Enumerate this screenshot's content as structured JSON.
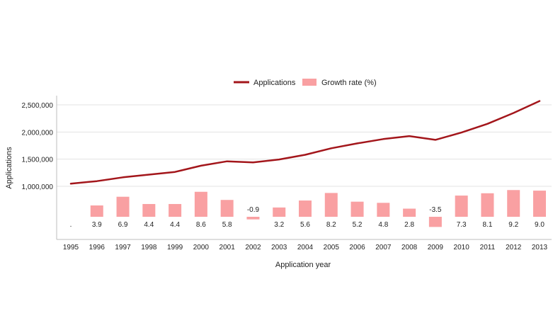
{
  "chart_data": {
    "type": "bar+line",
    "title": "",
    "xlabel": "Application year",
    "ylabel": "Applications",
    "categories": [
      "1995",
      "1996",
      "1997",
      "1998",
      "1999",
      "2000",
      "2001",
      "2002",
      "2003",
      "2004",
      "2005",
      "2006",
      "2007",
      "2008",
      "2009",
      "2010",
      "2011",
      "2012",
      "2013"
    ],
    "series": [
      {
        "name": "Applications",
        "type": "line",
        "color": "#A3161B",
        "values": [
          1050000,
          1095000,
          1165000,
          1215000,
          1265000,
          1380000,
          1460000,
          1440000,
          1495000,
          1580000,
          1700000,
          1790000,
          1870000,
          1925000,
          1855000,
          1990000,
          2150000,
          2350000,
          2570000
        ]
      },
      {
        "name": "Growth rate (%)",
        "type": "bar",
        "color": "#F9A0A2",
        "values": [
          null,
          3.9,
          6.9,
          4.4,
          4.4,
          8.6,
          5.8,
          -0.9,
          3.2,
          5.6,
          8.2,
          5.2,
          4.8,
          2.8,
          -3.5,
          7.3,
          8.1,
          9.2,
          9.0
        ],
        "labels": [
          ".",
          "3.9",
          "6.9",
          "4.4",
          "4.4",
          "8.6",
          "5.8",
          "-0.9",
          "3.2",
          "5.6",
          "8.2",
          "5.2",
          "4.8",
          "2.8",
          "-3.5",
          "7.3",
          "8.1",
          "9.2",
          "9.0"
        ]
      }
    ],
    "y_ticks": [
      "1,000,000",
      "1,500,000",
      "2,000,000",
      "2,500,000"
    ],
    "y_tick_values": [
      1000000,
      1500000,
      2000000,
      2500000
    ],
    "ylim": [
      0,
      2700000
    ],
    "legend_position": "top",
    "grid": true
  }
}
